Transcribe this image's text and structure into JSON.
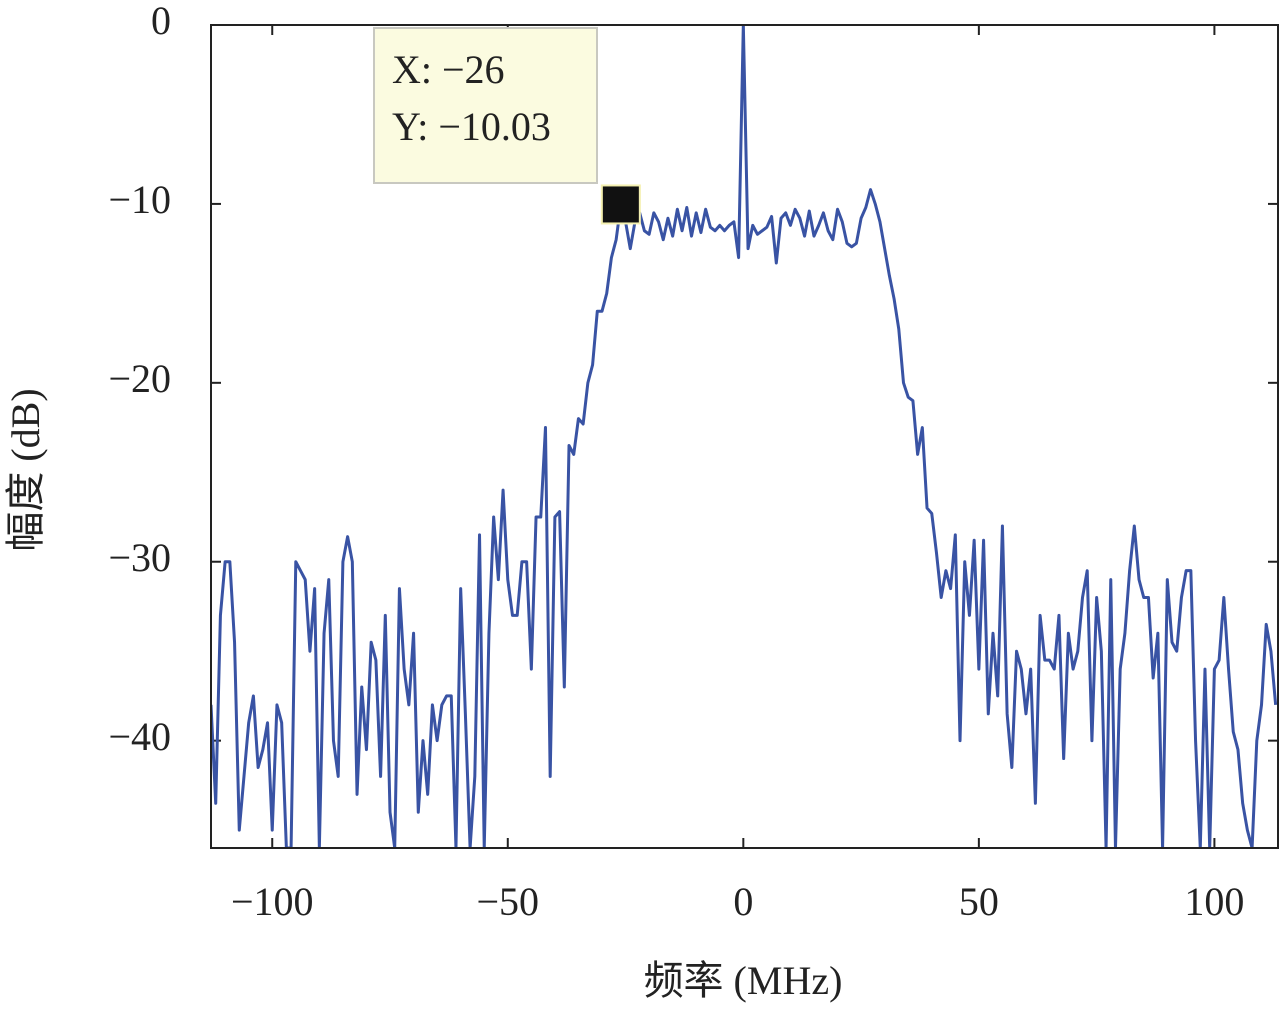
{
  "chart_data": {
    "type": "line",
    "xlabel": "频率 (MHz)",
    "ylabel": "幅度 (dB)",
    "xlim": [
      -113,
      113.5
    ],
    "ylim": [
      -46,
      0
    ],
    "xticks": [
      {
        "value": -100,
        "label": "−100"
      },
      {
        "value": -50,
        "label": "−50"
      },
      0,
      50,
      100
    ],
    "yticks": [
      0,
      {
        "value": -10,
        "label": "−10"
      },
      {
        "value": -20,
        "label": "−20"
      },
      {
        "value": -30,
        "label": "−30"
      },
      {
        "value": -40,
        "label": "−40"
      }
    ],
    "grid": false,
    "series": [
      {
        "color": "#3953a4",
        "x": [
          -113,
          -112,
          -111,
          -110,
          -109,
          -108,
          -107,
          -106,
          -105,
          -104,
          -103,
          -102,
          -101,
          -100,
          -99,
          -98,
          -97,
          -96,
          -95,
          -94,
          -93,
          -92,
          -91,
          -90,
          -89,
          -88,
          -87,
          -86,
          -85,
          -84,
          -83,
          -82,
          -81,
          -80,
          -79,
          -78,
          -77,
          -76,
          -75,
          -74,
          -73,
          -72,
          -71,
          -70,
          -69,
          -68,
          -67,
          -66,
          -65,
          -64,
          -63,
          -62,
          -61,
          -60,
          -59,
          -58,
          -57,
          -56,
          -55,
          -54,
          -53,
          -52,
          -51,
          -50,
          -49,
          -48,
          -47,
          -46,
          -45,
          -44,
          -43,
          -42,
          -41,
          -40,
          -39,
          -38,
          -37,
          -36,
          -35,
          -34,
          -33,
          -32,
          -31,
          -30,
          -29,
          -28,
          -27,
          -26,
          -25,
          -24,
          -23,
          -22,
          -21,
          -20,
          -19,
          -18,
          -17,
          -16,
          -15,
          -14,
          -13,
          -12,
          -11,
          -10,
          -9,
          -8,
          -7,
          -6,
          -5,
          -4,
          -3,
          -2,
          -1,
          0,
          1,
          2,
          3,
          4,
          5,
          6,
          7,
          8,
          9,
          10,
          11,
          12,
          13,
          14,
          15,
          16,
          17,
          18,
          19,
          20,
          21,
          22,
          23,
          24,
          25,
          26,
          27,
          28,
          29,
          30,
          31,
          32,
          33,
          34,
          35,
          36,
          37,
          38,
          39,
          40,
          41,
          42,
          43,
          44,
          45,
          46,
          47,
          48,
          49,
          50,
          51,
          52,
          53,
          54,
          55,
          56,
          57,
          58,
          59,
          60,
          61,
          62,
          63,
          64,
          65,
          66,
          67,
          68,
          69,
          70,
          71,
          72,
          73,
          74,
          75,
          76,
          77,
          78,
          79,
          80,
          81,
          82,
          83,
          84,
          85,
          86,
          87,
          88,
          89,
          90,
          91,
          92,
          93,
          94,
          95,
          96,
          97,
          98,
          99,
          100,
          101,
          102,
          103,
          104,
          105,
          106,
          107,
          108,
          109,
          110,
          111,
          112,
          113
        ],
        "values": [
          -38,
          -43.5,
          -33,
          -30,
          -30,
          -34.5,
          -45,
          -42,
          -39,
          -37.5,
          -41.5,
          -40.5,
          -39,
          -45,
          -38,
          -39,
          -46,
          -46,
          -30,
          -30.5,
          -31,
          -35,
          -31.5,
          -46,
          -34,
          -31,
          -40,
          -42,
          -30,
          -28.6,
          -30,
          -43,
          -37,
          -40.5,
          -34.5,
          -35.5,
          -42,
          -33,
          -44,
          -46,
          -31.5,
          -36,
          -38,
          -34,
          -44,
          -40,
          -43,
          -38,
          -40,
          -38,
          -37.5,
          -37.5,
          -46,
          -31.5,
          -38.5,
          -46,
          -42,
          -28.5,
          -46,
          -34,
          -27.5,
          -31,
          -26,
          -31,
          -33,
          -33,
          -30,
          -30,
          -36,
          -27.5,
          -27.5,
          -22.5,
          -42,
          -27.5,
          -27.2,
          -37,
          -23.5,
          -24,
          -22,
          -22.3,
          -20,
          -19,
          -16,
          -16,
          -15,
          -13,
          -12,
          -10.03,
          -11,
          -12.5,
          -11,
          -10.5,
          -11.5,
          -11.7,
          -10.5,
          -11,
          -12,
          -10.8,
          -11.8,
          -10.3,
          -11.5,
          -10.2,
          -11.8,
          -10.5,
          -11.6,
          -10.3,
          -11.3,
          -11.5,
          -11.2,
          -11.5,
          -11.2,
          -11,
          -13,
          0,
          -12.5,
          -11.2,
          -11.7,
          -11.5,
          -11.3,
          -10.7,
          -13.3,
          -10.8,
          -10.5,
          -11.2,
          -10.3,
          -10.8,
          -11.8,
          -10.4,
          -11.8,
          -11.2,
          -10.5,
          -11.5,
          -12,
          -10.3,
          -11,
          -12.2,
          -12.4,
          -12.2,
          -10.8,
          -10.2,
          -9.2,
          -10,
          -11,
          -12.5,
          -14,
          -15.3,
          -17,
          -20,
          -20.8,
          -21,
          -24,
          -22.5,
          -27,
          -27.3,
          -29.5,
          -32,
          -30.5,
          -31.5,
          -28.5,
          -40,
          -30,
          -33,
          -28.8,
          -36,
          -28.8,
          -38.5,
          -34,
          -37.5,
          -28,
          -38.5,
          -41.5,
          -35,
          -36,
          -38.5,
          -36,
          -43.5,
          -33,
          -35.5,
          -35.5,
          -36,
          -33,
          -41,
          -34,
          -36,
          -35,
          -32,
          -30.5,
          -40,
          -32,
          -35,
          -46,
          -31,
          -46,
          -36,
          -34,
          -30.5,
          -28,
          -31,
          -32,
          -32,
          -36.5,
          -34,
          -46,
          -31,
          -34.5,
          -35,
          -32,
          -30.5,
          -30.5,
          -40,
          -46,
          -36,
          -46,
          -36,
          -35.5,
          -32,
          -36,
          -39.5,
          -40.5,
          -43.5,
          -45,
          -46,
          -40,
          -38,
          -33.5,
          -35,
          -38
        ]
      }
    ],
    "datatip": {
      "x": -26,
      "y": -10.03,
      "lines": [
        "X: −26",
        "Y: −10.03"
      ]
    }
  }
}
